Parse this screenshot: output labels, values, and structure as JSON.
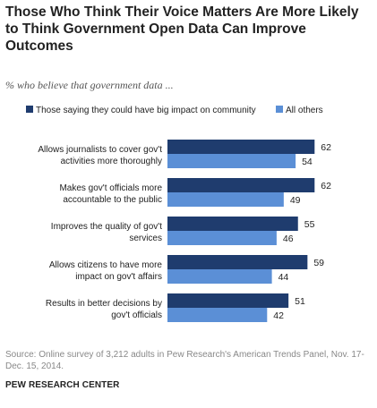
{
  "title": "Those Who Think Their Voice Matters Are More Likely to Think Government  Open Data Can Improve Outcomes",
  "subtitle": "% who believe that government data ...",
  "source": "Source: Online survey of 3,212 adults in Pew Research's American Trends Panel, Nov. 17-Dec. 15, 2014.",
  "footer": "PEW RESEARCH CENTER",
  "colors": {
    "series1": "#1f3c6e",
    "series2": "#5b8fd6"
  },
  "chart_data": {
    "type": "bar",
    "orientation": "horizontal",
    "categories": [
      [
        "Allows journalists to cover gov't",
        "activities more thoroughly"
      ],
      [
        "Makes gov't officials more",
        "accountable to the public"
      ],
      [
        "Improves the quality of gov't",
        "services"
      ],
      [
        "Allows citizens to have more",
        "impact on gov't affairs"
      ],
      [
        "Results in better decisions by",
        "gov't officials"
      ]
    ],
    "series": [
      {
        "name": "Those saying they could have big impact on community",
        "values": [
          62,
          62,
          55,
          59,
          51
        ]
      },
      {
        "name": "All others",
        "values": [
          54,
          49,
          46,
          44,
          42
        ]
      }
    ],
    "legend": "top",
    "grid": false
  }
}
